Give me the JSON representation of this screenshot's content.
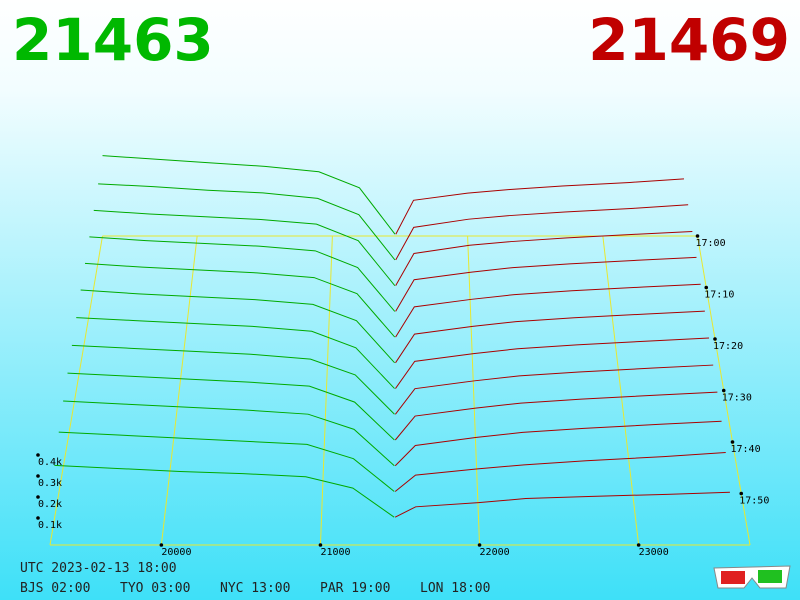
{
  "header": {
    "bid": 21463,
    "ask": 21469
  },
  "chart_data": {
    "type": "depth3d",
    "xlim": [
      19300,
      23700
    ],
    "xticks": [
      20000,
      21000,
      22000,
      23000
    ],
    "ylim": [
      0,
      400
    ],
    "yticks": [
      {
        "value": 100,
        "label": "0.1k"
      },
      {
        "value": 200,
        "label": "0.2k"
      },
      {
        "value": 300,
        "label": "0.3k"
      },
      {
        "value": 400,
        "label": "0.4k"
      }
    ],
    "zlim": [
      0,
      60
    ],
    "zticks": [
      {
        "value": 0,
        "label": "17:00"
      },
      {
        "value": 10,
        "label": "17:10"
      },
      {
        "value": 20,
        "label": "17:20"
      },
      {
        "value": 30,
        "label": "17:30"
      },
      {
        "value": 40,
        "label": "17:40"
      },
      {
        "value": 50,
        "label": "17:50"
      }
    ],
    "bid_color": "#00aa00",
    "ask_color": "#aa0000",
    "grid_color": "#e8e830",
    "bid_prices": [
      19300,
      19700,
      20100,
      20500,
      20900,
      21200,
      21463
    ],
    "ask_prices": [
      21469,
      21600,
      22000,
      22300,
      22700,
      23200,
      23600
    ],
    "snapshots": [
      {
        "t": 0,
        "bids": [
          450,
          430,
          410,
          390,
          360,
          270,
          10
        ],
        "asks": [
          10,
          200,
          240,
          260,
          280,
          300,
          320
        ]
      },
      {
        "t": 5,
        "bids": [
          430,
          415,
          395,
          380,
          350,
          260,
          10
        ],
        "asks": [
          10,
          190,
          235,
          255,
          275,
          295,
          315
        ]
      },
      {
        "t": 10,
        "bids": [
          420,
          400,
          385,
          370,
          345,
          255,
          10
        ],
        "asks": [
          10,
          185,
          230,
          250,
          270,
          290,
          305
        ]
      },
      {
        "t": 15,
        "bids": [
          410,
          390,
          375,
          360,
          335,
          245,
          10
        ],
        "asks": [
          10,
          180,
          220,
          245,
          265,
          285,
          300
        ]
      },
      {
        "t": 20,
        "bids": [
          400,
          380,
          365,
          350,
          325,
          240,
          10
        ],
        "asks": [
          10,
          170,
          210,
          235,
          255,
          275,
          290
        ]
      },
      {
        "t": 25,
        "bids": [
          390,
          370,
          355,
          340,
          315,
          230,
          10
        ],
        "asks": [
          10,
          160,
          200,
          225,
          245,
          265,
          280
        ]
      },
      {
        "t": 30,
        "bids": [
          375,
          360,
          345,
          330,
          305,
          220,
          10
        ],
        "asks": [
          10,
          150,
          190,
          215,
          235,
          255,
          270
        ]
      },
      {
        "t": 35,
        "bids": [
          360,
          345,
          330,
          315,
          290,
          210,
          10
        ],
        "asks": [
          10,
          140,
          180,
          205,
          225,
          245,
          260
        ]
      },
      {
        "t": 40,
        "bids": [
          345,
          330,
          315,
          300,
          280,
          200,
          10
        ],
        "asks": [
          10,
          130,
          170,
          195,
          215,
          235,
          250
        ]
      },
      {
        "t": 45,
        "bids": [
          330,
          315,
          300,
          285,
          265,
          190,
          10
        ],
        "asks": [
          10,
          110,
          150,
          175,
          195,
          215,
          230
        ]
      },
      {
        "t": 50,
        "bids": [
          300,
          285,
          270,
          255,
          240,
          170,
          10
        ],
        "asks": [
          10,
          90,
          120,
          140,
          160,
          180,
          200
        ]
      },
      {
        "t": 55,
        "bids": [
          260,
          245,
          230,
          220,
          205,
          150,
          10
        ],
        "asks": [
          10,
          60,
          80,
          100,
          110,
          120,
          130
        ]
      }
    ]
  },
  "footer": {
    "utc": "UTC 2023-02-13 18:00",
    "zones": [
      "BJS 02:00",
      "TYO 03:00",
      "NYC 13:00",
      "PAR 19:00",
      "LON 18:00"
    ]
  }
}
